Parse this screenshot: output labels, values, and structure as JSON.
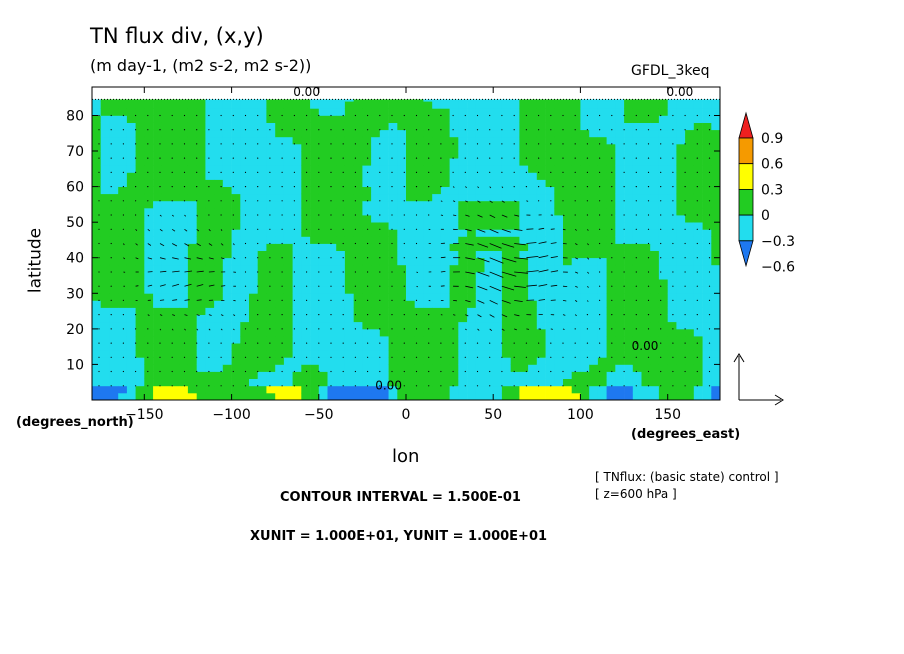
{
  "header": {
    "title": "TN flux div, (x,y)",
    "subtitle": "(m day-1, (m2 s-2, m2 s-2))",
    "dataset": "GFDL_3keq"
  },
  "axes": {
    "xlabel": "lon",
    "x_unit": "(degrees_east)",
    "ylabel": "latitude",
    "y_unit": "(degrees_north)"
  },
  "notes": {
    "line1": "[ TNflux: (basic state) control ]",
    "line2": "[ z=600 hPa ]",
    "contour_interval": "CONTOUR INTERVAL = 1.500E-01",
    "vector_units": "XUNIT = 1.000E+01, YUNIT = 1.000E+01"
  },
  "colors": {
    "red": "#ee2020",
    "orange": "#f59a00",
    "yellow": "#ffff00",
    "green": "#22cc22",
    "cyan": "#22ddee",
    "blue": "#1e78f0",
    "top_band": "#ffffff"
  },
  "chart_data": {
    "type": "contour map with vectors",
    "x_range": [
      -180,
      180
    ],
    "y_range": [
      0,
      88
    ],
    "x_ticks": [
      -150,
      -100,
      -50,
      0,
      50,
      100,
      150
    ],
    "y_ticks": [
      10,
      20,
      30,
      40,
      50,
      60,
      70,
      80
    ],
    "x_tick_labels": [
      "−150",
      "−100",
      "−50",
      "0",
      "50",
      "100",
      "150"
    ],
    "y_tick_labels": [
      "10",
      "20",
      "30",
      "40",
      "50",
      "60",
      "70",
      "80"
    ],
    "colorbar": {
      "levels": [
        -0.6,
        -0.3,
        0,
        0.3,
        0.6,
        0.9
      ],
      "labels": [
        "−0.6",
        "−0.3",
        "0",
        "0.3",
        "0.6",
        "0.9"
      ],
      "colors": [
        "#1e78f0",
        "#22ddee",
        "#22cc22",
        "#ffff00",
        "#f59a00",
        "#ee2020"
      ]
    },
    "contour_labels": [
      {
        "text": "0.00",
        "lon": -57,
        "lat": 85.5
      },
      {
        "text": "0.00",
        "lon": 157,
        "lat": 85.5
      },
      {
        "text": "0.00",
        "lon": 137,
        "lat": 14
      },
      {
        "text": "0.00",
        "lon": -10,
        "lat": 3
      }
    ],
    "reference_vector": {
      "x_unit": 10,
      "y_unit": 10
    }
  }
}
